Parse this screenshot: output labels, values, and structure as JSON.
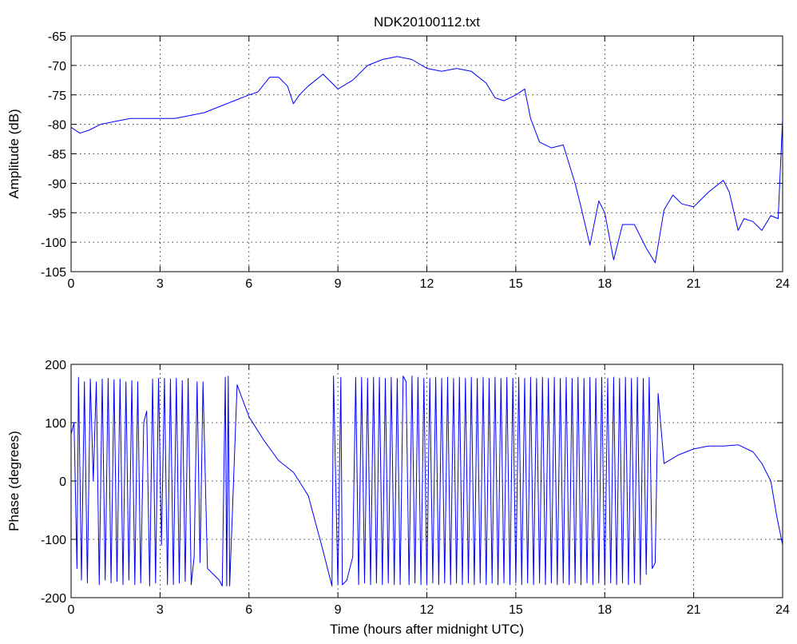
{
  "title": "NDK20100112.txt",
  "chart_data": [
    {
      "type": "line",
      "name": "amplitude",
      "title": "NDK20100112.txt",
      "xlabel": "",
      "ylabel": "Amplitude (dB)",
      "xlim": [
        0,
        24
      ],
      "ylim": [
        -105,
        -65
      ],
      "xticks": [
        0,
        3,
        6,
        9,
        12,
        15,
        18,
        21,
        24
      ],
      "yticks": [
        -65,
        -70,
        -75,
        -80,
        -85,
        -90,
        -95,
        -100,
        -105
      ],
      "grid": true,
      "color": "#0000ff",
      "series": [
        {
          "x": [
            0,
            0.3,
            0.6,
            1.0,
            1.5,
            2.0,
            2.4,
            3.0,
            3.5,
            4.0,
            4.5,
            5.0,
            5.5,
            6.0,
            6.3,
            6.7,
            7.0,
            7.3,
            7.5,
            7.7,
            8.0,
            8.5,
            9.0,
            9.5,
            10.0,
            10.5,
            11.0,
            11.5,
            12.0,
            12.5,
            13.0,
            13.5,
            14.0,
            14.3,
            14.6,
            15.0,
            15.3,
            15.5,
            15.8,
            16.2,
            16.6,
            17.0,
            17.2,
            17.5,
            17.8,
            18.0,
            18.3,
            18.6,
            19.0,
            19.4,
            19.7,
            20.0,
            20.3,
            20.6,
            21.0,
            21.5,
            22.0,
            22.2,
            22.5,
            22.7,
            23.0,
            23.3,
            23.6,
            23.85,
            24.0
          ],
          "y": [
            -80.5,
            -81.5,
            -81,
            -80,
            -79.5,
            -79,
            -79,
            -79,
            -79,
            -78.5,
            -78,
            -77,
            -76,
            -75,
            -74.5,
            -72,
            -72,
            -73.5,
            -76.5,
            -75,
            -73.5,
            -71.5,
            -74,
            -72.5,
            -70,
            -69,
            -68.5,
            -69,
            -70.5,
            -71,
            -70.5,
            -71,
            -73,
            -75.5,
            -76,
            -75,
            -74,
            -79,
            -83,
            -84,
            -83.5,
            -90,
            -94,
            -100.5,
            -93,
            -95,
            -103,
            -97,
            -97,
            -101,
            -103.5,
            -94.5,
            -92,
            -93.5,
            -94,
            -91.5,
            -89.5,
            -91.5,
            -98,
            -96,
            -96.5,
            -98,
            -95.5,
            -96,
            -79
          ]
        }
      ]
    },
    {
      "type": "line",
      "name": "phase",
      "title": "",
      "xlabel": "Time (hours after midnight UTC)",
      "ylabel": "Phase (degrees)",
      "xlim": [
        0,
        24
      ],
      "ylim": [
        -200,
        200
      ],
      "xticks": [
        0,
        3,
        6,
        9,
        12,
        15,
        18,
        21,
        24
      ],
      "yticks": [
        200,
        100,
        0,
        -100,
        -200
      ],
      "grid": true,
      "color": "#0000ff",
      "series": [
        {
          "x": [
            0,
            0.1,
            0.2,
            0.25,
            0.35,
            0.45,
            0.55,
            0.65,
            0.75,
            0.85,
            0.95,
            1.05,
            1.15,
            1.25,
            1.35,
            1.45,
            1.55,
            1.65,
            1.75,
            1.85,
            1.95,
            2.05,
            2.15,
            2.25,
            2.35,
            2.45,
            2.55,
            2.65,
            2.75,
            2.85,
            2.95,
            3.05,
            3.15,
            3.25,
            3.35,
            3.45,
            3.55,
            3.65,
            3.75,
            3.85,
            3.95,
            4.05,
            4.15,
            4.25,
            4.35,
            4.45,
            4.6,
            5.0,
            5.1,
            5.2,
            5.25,
            5.3,
            5.35,
            5.6,
            6.0,
            6.5,
            7.0,
            7.5,
            8.0,
            8.5,
            8.8,
            8.85,
            9.0,
            9.1,
            9.15,
            9.3,
            9.5,
            9.6,
            9.7,
            9.8,
            9.9,
            10.0,
            10.1,
            10.2,
            10.3,
            10.4,
            10.5,
            10.6,
            10.7,
            10.8,
            10.9,
            11.0,
            11.1,
            11.2,
            11.3,
            11.4,
            11.5,
            11.6,
            11.7,
            11.8,
            11.9,
            12.0,
            12.1,
            12.2,
            12.3,
            12.4,
            12.5,
            12.6,
            12.7,
            12.8,
            12.9,
            13.0,
            13.1,
            13.2,
            13.3,
            13.4,
            13.5,
            13.6,
            13.7,
            13.8,
            13.9,
            14.0,
            14.1,
            14.2,
            14.3,
            14.4,
            14.5,
            14.6,
            14.7,
            14.8,
            14.9,
            15.0,
            15.1,
            15.2,
            15.3,
            15.4,
            15.5,
            15.6,
            15.7,
            15.8,
            15.9,
            16.0,
            16.1,
            16.2,
            16.3,
            16.4,
            16.5,
            16.6,
            16.7,
            16.8,
            16.9,
            17.0,
            17.1,
            17.2,
            17.3,
            17.4,
            17.5,
            17.6,
            17.7,
            17.8,
            17.9,
            18.0,
            18.1,
            18.2,
            18.3,
            18.4,
            18.5,
            18.6,
            18.7,
            18.8,
            18.9,
            19.0,
            19.1,
            19.2,
            19.3,
            19.4,
            19.5,
            19.6,
            19.7,
            19.8,
            20.0,
            20.5,
            21.0,
            21.5,
            22.0,
            22.5,
            23.0,
            23.3,
            23.6,
            23.8,
            24.0
          ],
          "y": [
            80,
            100,
            -150,
            178,
            -170,
            170,
            -175,
            175,
            0,
            170,
            -178,
            175,
            -170,
            176,
            -175,
            174,
            -172,
            175,
            -178,
            170,
            -170,
            172,
            -178,
            170,
            -175,
            100,
            120,
            -180,
            175,
            -175,
            176,
            -110,
            176,
            -178,
            175,
            -178,
            176,
            -175,
            172,
            -172,
            176,
            -178,
            -130,
            170,
            -140,
            170,
            -150,
            -170,
            -180,
            178,
            -180,
            180,
            -180,
            165,
            110,
            70,
            35,
            15,
            -25,
            -120,
            -180,
            180,
            -178,
            178,
            -178,
            -170,
            -130,
            178,
            -178,
            178,
            -175,
            176,
            -178,
            178,
            -175,
            178,
            -178,
            176,
            -175,
            178,
            -178,
            176,
            -178,
            180,
            170,
            -178,
            180,
            -175,
            178,
            -178,
            176,
            -178,
            176,
            -175,
            178,
            -178,
            176,
            -175,
            178,
            -178,
            176,
            -175,
            178,
            -178,
            176,
            -175,
            178,
            -178,
            176,
            -175,
            178,
            -178,
            176,
            -175,
            178,
            -178,
            176,
            -175,
            178,
            -178,
            176,
            -175,
            178,
            -178,
            176,
            -175,
            178,
            -178,
            176,
            -175,
            178,
            -178,
            176,
            -175,
            178,
            -178,
            176,
            -175,
            178,
            -178,
            176,
            -175,
            178,
            -178,
            176,
            -175,
            178,
            -178,
            176,
            -175,
            178,
            -178,
            176,
            -175,
            178,
            -178,
            176,
            -175,
            178,
            -178,
            176,
            -175,
            178,
            -178,
            176,
            -160,
            178,
            -150,
            -140,
            150,
            30,
            45,
            55,
            60,
            60,
            62,
            50,
            30,
            0,
            -60,
            -110
          ]
        }
      ]
    }
  ]
}
